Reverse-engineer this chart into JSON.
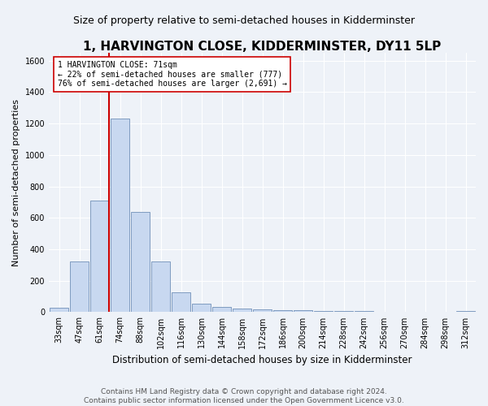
{
  "title": "1, HARVINGTON CLOSE, KIDDERMINSTER, DY11 5LP",
  "subtitle": "Size of property relative to semi-detached houses in Kidderminster",
  "xlabel": "Distribution of semi-detached houses by size in Kidderminster",
  "ylabel": "Number of semi-detached properties",
  "categories": [
    "33sqm",
    "47sqm",
    "61sqm",
    "74sqm",
    "88sqm",
    "102sqm",
    "116sqm",
    "130sqm",
    "144sqm",
    "158sqm",
    "172sqm",
    "186sqm",
    "200sqm",
    "214sqm",
    "228sqm",
    "242sqm",
    "256sqm",
    "270sqm",
    "284sqm",
    "298sqm",
    "312sqm"
  ],
  "values": [
    30,
    320,
    710,
    1230,
    640,
    320,
    125,
    55,
    35,
    25,
    20,
    15,
    10,
    8,
    5,
    5,
    3,
    0,
    0,
    0,
    8
  ],
  "bar_color": "#c8d8f0",
  "bar_edge_color": "#7090b8",
  "vline_color": "#cc0000",
  "annotation_text": "1 HARVINGTON CLOSE: 71sqm\n← 22% of semi-detached houses are smaller (777)\n76% of semi-detached houses are larger (2,691) →",
  "annotation_box_color": "#ffffff",
  "annotation_box_edge": "#cc0000",
  "ylim": [
    0,
    1650
  ],
  "yticks": [
    0,
    200,
    400,
    600,
    800,
    1000,
    1200,
    1400,
    1600
  ],
  "footnote": "Contains HM Land Registry data © Crown copyright and database right 2024.\nContains public sector information licensed under the Open Government Licence v3.0.",
  "title_fontsize": 11,
  "subtitle_fontsize": 9,
  "xlabel_fontsize": 8.5,
  "ylabel_fontsize": 8,
  "tick_fontsize": 7,
  "footnote_fontsize": 6.5,
  "bg_color": "#eef2f8"
}
